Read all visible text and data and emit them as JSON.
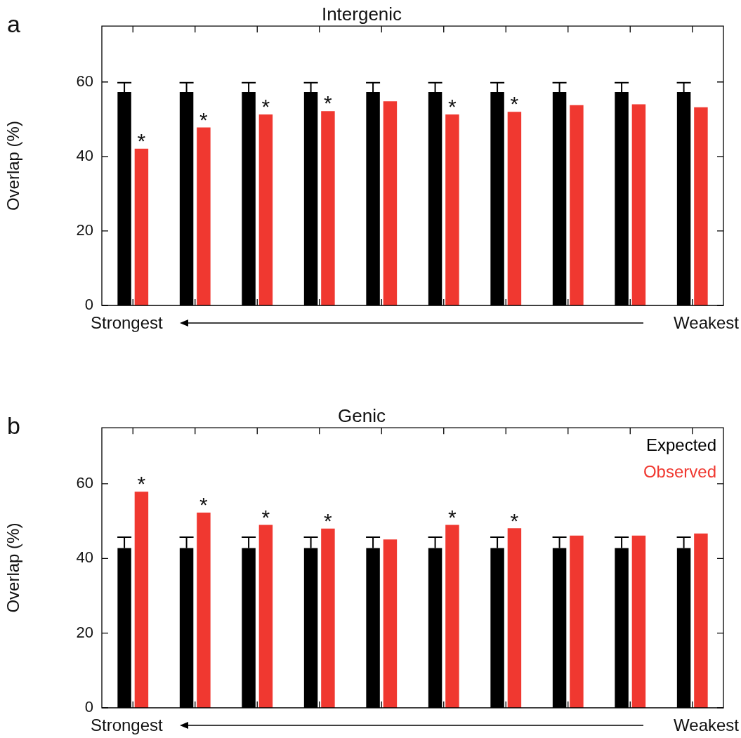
{
  "chart_data": [
    {
      "type": "bar",
      "title": "Intergenic",
      "ylabel": "Overlap (%)",
      "categories": [
        null,
        null,
        null,
        null,
        null,
        null,
        null,
        null,
        null,
        null
      ],
      "series": [
        {
          "color": "#000000",
          "values": [
            57.3,
            57.3,
            57.3,
            57.3,
            57.3,
            57.3,
            57.3,
            57.3,
            57.3,
            57.3
          ],
          "errors": [
            [
              57.3,
              59.8
            ],
            [
              57.3,
              59.8
            ],
            [
              57.3,
              59.8
            ],
            [
              57.3,
              59.8
            ],
            [
              57.3,
              59.8
            ],
            [
              57.3,
              59.8
            ],
            [
              57.3,
              59.8
            ],
            [
              57.3,
              59.8
            ],
            [
              57.3,
              59.8
            ],
            [
              57.3,
              59.8
            ]
          ]
        },
        {
          "color": "#f03830",
          "values": [
            42.1,
            47.8,
            51.3,
            52.2,
            54.8,
            51.3,
            52.0,
            53.8,
            54.0,
            53.2
          ],
          "value_labels": [
            "*",
            "*",
            "*",
            "*",
            null,
            "*",
            "*",
            null,
            null,
            null
          ]
        }
      ],
      "ylim": [
        0,
        75
      ],
      "yticks": [
        0,
        20,
        40,
        60
      ],
      "grid": false,
      "legend": false,
      "annotations": [
        "a",
        "Strongest",
        "Weakest"
      ]
    },
    {
      "type": "bar",
      "title": "Genic",
      "ylabel": "Overlap (%)",
      "categories": [
        null,
        null,
        null,
        null,
        null,
        null,
        null,
        null,
        null,
        null
      ],
      "series": [
        {
          "name": "Expected",
          "color": "#000000",
          "values": [
            42.8,
            42.8,
            42.8,
            42.8,
            42.8,
            42.8,
            42.8,
            42.8,
            42.8,
            42.8
          ],
          "errors": [
            [
              42.8,
              45.7
            ],
            [
              42.8,
              45.7
            ],
            [
              42.8,
              45.7
            ],
            [
              42.8,
              45.7
            ],
            [
              42.8,
              45.7
            ],
            [
              42.8,
              45.7
            ],
            [
              42.8,
              45.7
            ],
            [
              42.8,
              45.7
            ],
            [
              42.8,
              45.7
            ],
            [
              42.8,
              45.7
            ]
          ]
        },
        {
          "name": "Observed",
          "color": "#f03830",
          "values": [
            57.9,
            52.3,
            49.0,
            48.0,
            45.1,
            49.0,
            48.1,
            46.1,
            46.1,
            46.7
          ],
          "value_labels": [
            "*",
            "*",
            "*",
            "*",
            null,
            "*",
            "*",
            null,
            null,
            null
          ]
        }
      ],
      "ylim": [
        0,
        75
      ],
      "yticks": [
        0,
        20,
        40,
        60
      ],
      "grid": false,
      "legend": "top right",
      "annotations": [
        "b",
        "Strongest",
        "Weakest"
      ]
    }
  ]
}
